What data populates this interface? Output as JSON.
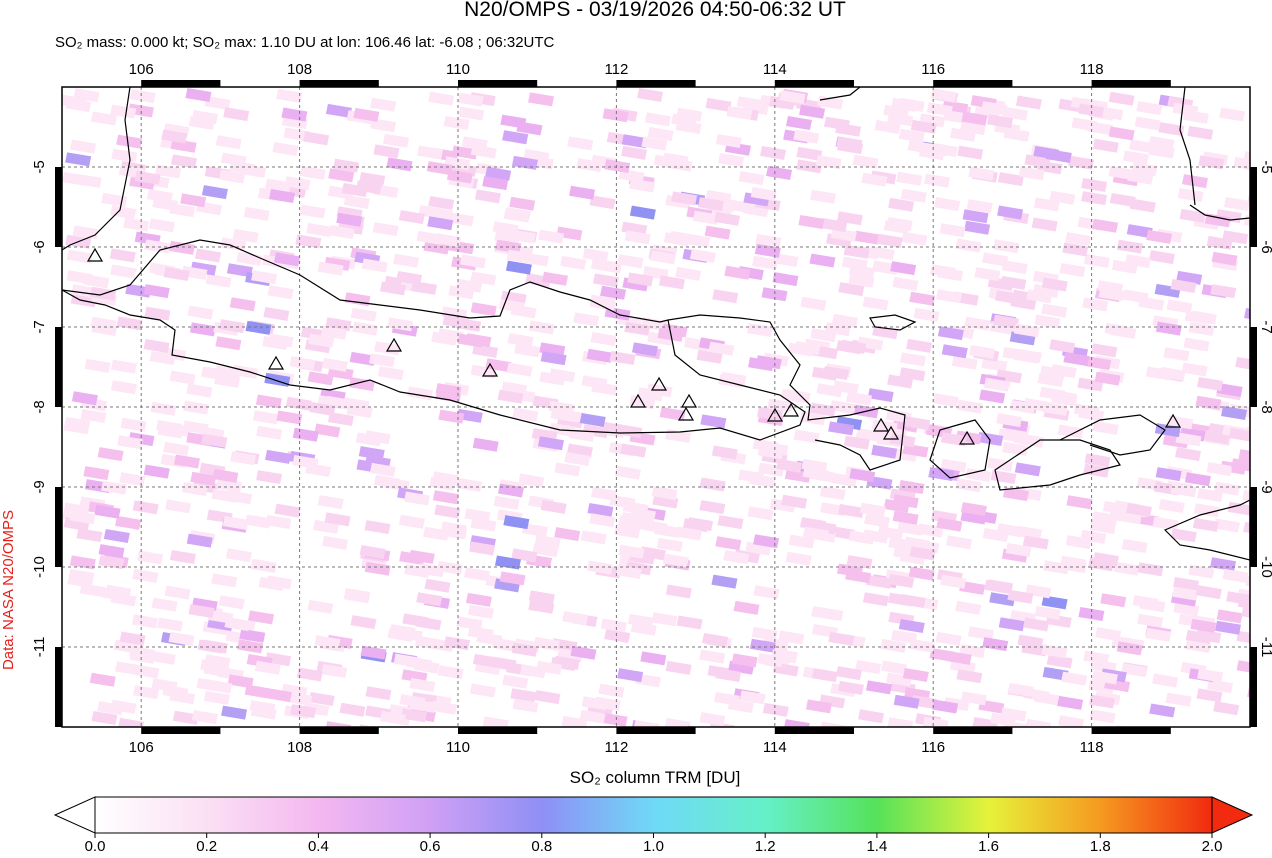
{
  "title": "N20/OMPS - 03/19/2026 04:50-06:32 UT",
  "subtitle": "SO₂ mass: 0.000 kt; SO₂ max: 1.10 DU at lon: 106.46 lat: -6.08 ; 06:32UTC",
  "source_label": "Data: NASA N20/OMPS",
  "map": {
    "xlim": [
      105,
      120
    ],
    "ylim": [
      -12,
      -4
    ],
    "xticks": [
      106,
      108,
      110,
      112,
      114,
      116,
      118
    ],
    "yticks": [
      -5,
      -6,
      -7,
      -8,
      -9,
      -10,
      -11
    ]
  },
  "colorbar": {
    "label": "SO₂ column TRM [DU]",
    "range": [
      0,
      2
    ],
    "ticks": [
      {
        "value": 0,
        "label": "0.0"
      },
      {
        "value": 0.2,
        "label": "0.2"
      },
      {
        "value": 0.4,
        "label": "0.4"
      },
      {
        "value": 0.6,
        "label": "0.6"
      },
      {
        "value": 0.8,
        "label": "0.8"
      },
      {
        "value": 1,
        "label": "1.0"
      },
      {
        "value": 1.2,
        "label": "1.2"
      },
      {
        "value": 1.4,
        "label": "1.4"
      },
      {
        "value": 1.6,
        "label": "1.6"
      },
      {
        "value": 1.8,
        "label": "1.8"
      },
      {
        "value": 2,
        "label": "2.0"
      }
    ]
  }
}
